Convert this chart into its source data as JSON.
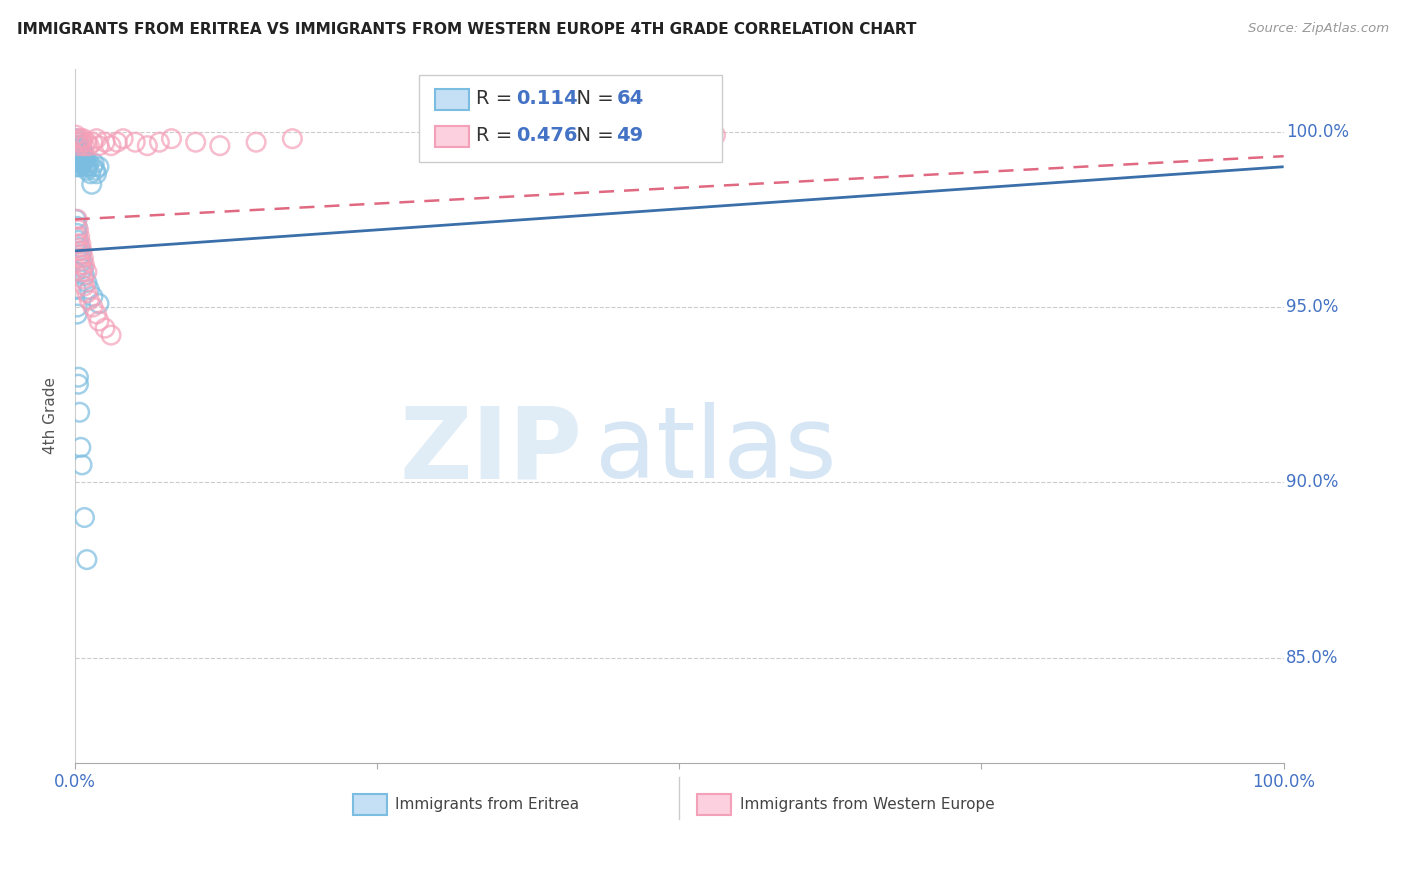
{
  "title": "IMMIGRANTS FROM ERITREA VS IMMIGRANTS FROM WESTERN EUROPE 4TH GRADE CORRELATION CHART",
  "source": "Source: ZipAtlas.com",
  "ylabel": "4th Grade",
  "ytick_labels": [
    "100.0%",
    "95.0%",
    "90.0%",
    "85.0%"
  ],
  "ytick_values": [
    1.0,
    0.95,
    0.9,
    0.85
  ],
  "xlim": [
    0.0,
    1.0
  ],
  "ylim": [
    0.82,
    1.018
  ],
  "legend_r_eritrea": "0.114",
  "legend_n_eritrea": "64",
  "legend_r_western": "0.476",
  "legend_n_western": "49",
  "color_eritrea": "#7bbde0",
  "color_western": "#f4a0b8",
  "color_eritrea_line": "#3a6faa",
  "color_western_line": "#e06880",
  "color_axis_labels": "#4472c4",
  "watermark_zip": "ZIP",
  "watermark_atlas": "atlas",
  "scatter_eritrea_x": [
    0.001,
    0.001,
    0.001,
    0.001,
    0.001,
    0.002,
    0.002,
    0.002,
    0.002,
    0.003,
    0.003,
    0.003,
    0.003,
    0.004,
    0.004,
    0.004,
    0.005,
    0.005,
    0.005,
    0.005,
    0.006,
    0.006,
    0.006,
    0.007,
    0.007,
    0.008,
    0.008,
    0.009,
    0.009,
    0.01,
    0.01,
    0.011,
    0.012,
    0.013,
    0.014,
    0.015,
    0.016,
    0.017,
    0.018,
    0.02,
    0.001,
    0.002,
    0.002,
    0.003,
    0.004,
    0.005,
    0.006,
    0.007,
    0.008,
    0.01,
    0.012,
    0.015,
    0.02,
    0.001,
    0.001,
    0.002,
    0.002,
    0.003,
    0.003,
    0.004,
    0.005,
    0.006,
    0.008,
    0.01
  ],
  "scatter_eritrea_y": [
    0.998,
    0.996,
    0.994,
    0.992,
    0.99,
    0.997,
    0.995,
    0.993,
    0.991,
    0.996,
    0.994,
    0.992,
    0.99,
    0.995,
    0.993,
    0.991,
    0.996,
    0.994,
    0.992,
    0.99,
    0.995,
    0.993,
    0.991,
    0.994,
    0.992,
    0.993,
    0.991,
    0.992,
    0.99,
    0.991,
    0.989,
    0.99,
    0.991,
    0.988,
    0.985,
    0.99,
    0.991,
    0.989,
    0.988,
    0.99,
    0.975,
    0.973,
    0.971,
    0.969,
    0.967,
    0.965,
    0.963,
    0.961,
    0.959,
    0.957,
    0.955,
    0.953,
    0.951,
    0.96,
    0.955,
    0.95,
    0.948,
    0.93,
    0.928,
    0.92,
    0.91,
    0.905,
    0.89,
    0.878
  ],
  "scatter_western_x": [
    0.001,
    0.002,
    0.003,
    0.004,
    0.005,
    0.006,
    0.007,
    0.008,
    0.01,
    0.012,
    0.015,
    0.018,
    0.02,
    0.025,
    0.03,
    0.035,
    0.04,
    0.05,
    0.06,
    0.07,
    0.08,
    0.1,
    0.12,
    0.15,
    0.18,
    0.53,
    0.001,
    0.002,
    0.003,
    0.004,
    0.005,
    0.006,
    0.007,
    0.008,
    0.01,
    0.012,
    0.015,
    0.018,
    0.02,
    0.025,
    0.03,
    0.002,
    0.003,
    0.004,
    0.005,
    0.006,
    0.007,
    0.008,
    0.01
  ],
  "scatter_western_y": [
    0.999,
    0.998,
    0.997,
    0.996,
    0.998,
    0.997,
    0.998,
    0.996,
    0.997,
    0.996,
    0.997,
    0.998,
    0.996,
    0.997,
    0.996,
    0.997,
    0.998,
    0.997,
    0.996,
    0.997,
    0.998,
    0.997,
    0.996,
    0.997,
    0.998,
    0.999,
    0.97,
    0.968,
    0.966,
    0.964,
    0.962,
    0.96,
    0.958,
    0.956,
    0.954,
    0.952,
    0.95,
    0.948,
    0.946,
    0.944,
    0.942,
    0.975,
    0.972,
    0.97,
    0.968,
    0.966,
    0.964,
    0.962,
    0.96
  ],
  "line_eritrea_x0": 0.0,
  "line_eritrea_x1": 1.0,
  "line_eritrea_y0": 0.966,
  "line_eritrea_y1": 0.99,
  "line_western_x0": 0.0,
  "line_western_x1": 1.0,
  "line_western_y0": 0.975,
  "line_western_y1": 0.993
}
